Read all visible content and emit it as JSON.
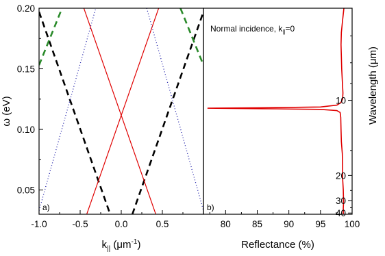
{
  "chart_data": [
    {
      "panel": "a)",
      "type": "line",
      "xlabel_main": "k",
      "xlabel_sub": "||",
      "xlabel_paren_open": " (",
      "xlabel_unit": "μm",
      "xlabel_unit_exp": "-1",
      "xlabel_paren_close": ")",
      "ylabel": "ω (eV)",
      "xlim": [
        -1.0,
        1.0
      ],
      "ylim": [
        0.03,
        0.2
      ],
      "xticks": [
        {
          "value": -1.0,
          "label": "-1.0"
        },
        {
          "value": -0.5,
          "label": "-0.5"
        },
        {
          "value": 0.0,
          "label": "0.0"
        },
        {
          "value": 0.5,
          "label": "0.5"
        }
      ],
      "yticks": [
        {
          "value": 0.05,
          "label": "0.05"
        },
        {
          "value": 0.1,
          "label": "0.10"
        },
        {
          "value": 0.15,
          "label": "0.15"
        },
        {
          "value": 0.2,
          "label": "0.20"
        }
      ],
      "series": [
        {
          "style": "dashed",
          "color": "#000000",
          "x": [
            -1.0,
            -0.135
          ],
          "y": [
            0.197,
            0.03
          ]
        },
        {
          "style": "dashed",
          "color": "#000000",
          "x": [
            0.135,
            1.0
          ],
          "y": [
            0.03,
            0.197
          ]
        },
        {
          "style": "solid",
          "color": "#e00000",
          "x": [
            -0.455,
            0.42
          ],
          "y": [
            0.2,
            0.03
          ]
        },
        {
          "style": "solid",
          "color": "#e00000",
          "x": [
            -0.42,
            0.455
          ],
          "y": [
            0.03,
            0.2
          ]
        },
        {
          "style": "dotted",
          "color": "#1a1aa6",
          "x": [
            -1.0,
            -0.31
          ],
          "y": [
            0.033,
            0.2
          ]
        },
        {
          "style": "dotted",
          "color": "#1a1aa6",
          "x": [
            0.31,
            1.0
          ],
          "y": [
            0.2,
            0.033
          ]
        },
        {
          "style": "dashed",
          "color": "#2a8a2a",
          "x": [
            -1.0,
            -0.72
          ],
          "y": [
            0.153,
            0.2
          ]
        },
        {
          "style": "dashed",
          "color": "#2a8a2a",
          "x": [
            0.72,
            1.0
          ],
          "y": [
            0.2,
            0.153
          ]
        }
      ]
    },
    {
      "panel": "b)",
      "type": "line",
      "xlabel": "Reflectance (%)",
      "ylabel": "Wavelength (μm)",
      "annotation_text": "Normal incidence, k",
      "annotation_sub": "||",
      "annotation_suffix": "=0",
      "xlim": [
        76.5,
        100
      ],
      "ylim": [
        0.03,
        0.2
      ],
      "xticks": [
        {
          "value": 80,
          "label": "80"
        },
        {
          "value": 85,
          "label": "85"
        },
        {
          "value": 90,
          "label": "90"
        },
        {
          "value": 95,
          "label": "95"
        },
        {
          "value": 100,
          "label": "100"
        }
      ],
      "wavelength_ticks": [
        {
          "um": 10,
          "label": "10"
        },
        {
          "um": 20,
          "label": "20"
        },
        {
          "um": 30,
          "label": "30"
        },
        {
          "um": 40,
          "label": "40"
        }
      ],
      "series": [
        {
          "style": "solid",
          "color": "#e00000",
          "x": [
            98.7,
            98.5,
            98.3,
            98.25,
            98.3,
            98.35,
            98.45,
            98.55,
            98.5,
            98.2,
            97.6,
            95.0,
            88.0,
            77.2,
            88.0,
            95.0,
            97.6,
            98.1,
            98.2,
            98.25,
            98.3,
            98.45,
            98.5,
            98.5,
            98.6,
            98.65,
            98.6,
            98.6
          ],
          "y": [
            0.2,
            0.19,
            0.18,
            0.17,
            0.16,
            0.15,
            0.14,
            0.13,
            0.125,
            0.122,
            0.12,
            0.1185,
            0.118,
            0.1175,
            0.117,
            0.1165,
            0.1155,
            0.114,
            0.11,
            0.1,
            0.09,
            0.08,
            0.07,
            0.06,
            0.05,
            0.04,
            0.035,
            0.03
          ]
        }
      ]
    }
  ]
}
